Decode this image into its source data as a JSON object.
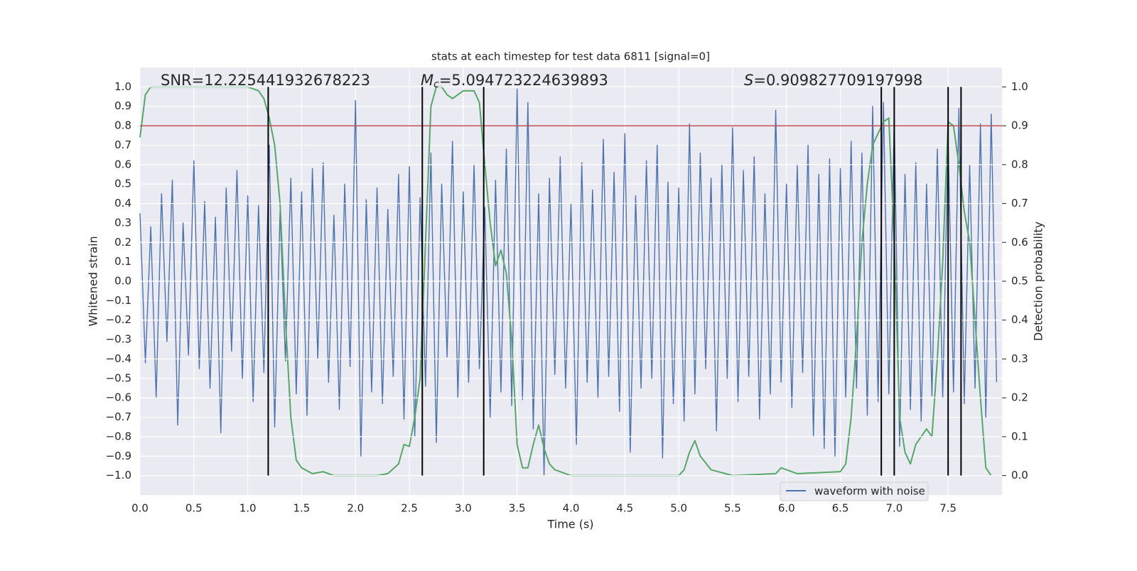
{
  "chart_data": {
    "type": "line",
    "title": "stats at each timestep for test data 6811 [signal=0]",
    "xlabel": "Time (s)",
    "ylabel": "Whitened strain",
    "y2label": "Detection probability",
    "background": "#eaeaf2",
    "grid": true,
    "legend": "lower right",
    "xlim": [
      0,
      8.0
    ],
    "ylim": [
      -1.1,
      1.1
    ],
    "y2lim": [
      -0.05,
      1.05
    ],
    "xticks": [
      {
        "value": 0,
        "label": "0.0"
      },
      {
        "value": 0.5,
        "label": "0.5"
      },
      {
        "value": 1,
        "label": "1.0"
      },
      {
        "value": 1.5,
        "label": "1.5"
      },
      {
        "value": 2,
        "label": "2.0"
      },
      {
        "value": 2.5,
        "label": "2.5"
      },
      {
        "value": 3,
        "label": "3.0"
      },
      {
        "value": 3.5,
        "label": "3.5"
      },
      {
        "value": 4,
        "label": "4.0"
      },
      {
        "value": 4.5,
        "label": "4.5"
      },
      {
        "value": 5,
        "label": "5.0"
      },
      {
        "value": 5.5,
        "label": "5.5"
      },
      {
        "value": 6,
        "label": "6.0"
      },
      {
        "value": 6.5,
        "label": "6.5"
      },
      {
        "value": 7,
        "label": "7.0"
      },
      {
        "value": 7.5,
        "label": "7.5"
      }
    ],
    "yticks": [
      {
        "value": -1,
        "label": "−1.0"
      },
      {
        "value": -0.9,
        "label": "−0.9"
      },
      {
        "value": -0.8,
        "label": "−0.8"
      },
      {
        "value": -0.7,
        "label": "−0.7"
      },
      {
        "value": -0.6,
        "label": "−0.6"
      },
      {
        "value": -0.5,
        "label": "−0.5"
      },
      {
        "value": -0.4,
        "label": "−0.4"
      },
      {
        "value": -0.3,
        "label": "−0.3"
      },
      {
        "value": -0.2,
        "label": "−0.2"
      },
      {
        "value": -0.1,
        "label": "−0.1"
      },
      {
        "value": 0,
        "label": "0.0"
      },
      {
        "value": 0.1,
        "label": "0.1"
      },
      {
        "value": 0.2,
        "label": "0.2"
      },
      {
        "value": 0.3,
        "label": "0.3"
      },
      {
        "value": 0.4,
        "label": "0.4"
      },
      {
        "value": 0.5,
        "label": "0.5"
      },
      {
        "value": 0.6,
        "label": "0.6"
      },
      {
        "value": 0.7,
        "label": "0.7"
      },
      {
        "value": 0.8,
        "label": "0.8"
      },
      {
        "value": 0.9,
        "label": "0.9"
      },
      {
        "value": 1,
        "label": "1.0"
      }
    ],
    "y2ticks": [
      {
        "value": 0,
        "label": "0.0"
      },
      {
        "value": 0.1,
        "label": "0.1"
      },
      {
        "value": 0.2,
        "label": "0.2"
      },
      {
        "value": 0.3,
        "label": "0.3"
      },
      {
        "value": 0.4,
        "label": "0.4"
      },
      {
        "value": 0.5,
        "label": "0.5"
      },
      {
        "value": 0.6,
        "label": "0.6"
      },
      {
        "value": 0.7,
        "label": "0.7"
      },
      {
        "value": 0.8,
        "label": "0.8"
      },
      {
        "value": 0.9,
        "label": "0.9"
      },
      {
        "value": 1,
        "label": "1.0"
      }
    ],
    "series": [
      {
        "name": "waveform with noise",
        "color": "#4c72b0",
        "axis": "y",
        "x": [
          0,
          0.05,
          0.1,
          0.15,
          0.2,
          0.25,
          0.3,
          0.35,
          0.4,
          0.45,
          0.5,
          0.55,
          0.6,
          0.65,
          0.7,
          0.75,
          0.8,
          0.85,
          0.9,
          0.95,
          1,
          1.05,
          1.1,
          1.15,
          1.2,
          1.25,
          1.3,
          1.35,
          1.4,
          1.45,
          1.5,
          1.55,
          1.6,
          1.65,
          1.7,
          1.75,
          1.8,
          1.85,
          1.9,
          1.95,
          2,
          2.05,
          2.1,
          2.15,
          2.2,
          2.25,
          2.3,
          2.35,
          2.4,
          2.45,
          2.5,
          2.55,
          2.6,
          2.65,
          2.7,
          2.75,
          2.8,
          2.85,
          2.9,
          2.95,
          3,
          3.05,
          3.1,
          3.15,
          3.2,
          3.25,
          3.3,
          3.35,
          3.4,
          3.45,
          3.5,
          3.55,
          3.6,
          3.65,
          3.7,
          3.75,
          3.8,
          3.85,
          3.9,
          3.95,
          4,
          4.05,
          4.1,
          4.15,
          4.2,
          4.25,
          4.3,
          4.35,
          4.4,
          4.45,
          4.5,
          4.55,
          4.6,
          4.65,
          4.7,
          4.75,
          4.8,
          4.85,
          4.9,
          4.95,
          5,
          5.05,
          5.1,
          5.15,
          5.2,
          5.25,
          5.3,
          5.35,
          5.4,
          5.45,
          5.5,
          5.55,
          5.6,
          5.65,
          5.7,
          5.75,
          5.8,
          5.85,
          5.9,
          5.95,
          6,
          6.05,
          6.1,
          6.15,
          6.2,
          6.25,
          6.3,
          6.35,
          6.4,
          6.45,
          6.5,
          6.55,
          6.6,
          6.65,
          6.7,
          6.75,
          6.8,
          6.85,
          6.9,
          6.95,
          7,
          7.05,
          7.1,
          7.15,
          7.2,
          7.25,
          7.3,
          7.35,
          7.4,
          7.45,
          7.5,
          7.55,
          7.6,
          7.65,
          7.7,
          7.75,
          7.8,
          7.85,
          7.9,
          7.95
        ],
        "values": [
          0.35,
          -0.42,
          0.28,
          -0.6,
          0.45,
          -0.31,
          0.52,
          -0.74,
          0.3,
          -0.38,
          0.62,
          -0.45,
          0.41,
          -0.55,
          0.33,
          -0.78,
          0.48,
          -0.36,
          0.57,
          -0.5,
          0.44,
          -0.62,
          0.39,
          -0.47,
          0.7,
          -0.75,
          0.36,
          -0.41,
          0.53,
          -0.58,
          0.46,
          -0.69,
          0.58,
          -0.4,
          0.61,
          -0.52,
          0.34,
          -0.66,
          0.5,
          -0.44,
          0.93,
          -0.9,
          0.42,
          -0.57,
          0.48,
          -0.63,
          0.37,
          -0.49,
          0.55,
          -0.71,
          0.59,
          -0.8,
          0.43,
          -0.54,
          0.66,
          -0.83,
          0.5,
          -0.39,
          0.72,
          -0.6,
          0.46,
          -0.52,
          0.6,
          -0.45,
          0.38,
          -0.7,
          0.52,
          -0.57,
          0.68,
          -0.64,
          0.99,
          -0.61,
          0.92,
          -0.76,
          0.45,
          -1.0,
          0.53,
          -0.48,
          0.64,
          -0.55,
          0.4,
          -0.84,
          0.61,
          -0.52,
          0.47,
          -0.6,
          0.73,
          -0.49,
          0.56,
          -0.67,
          0.76,
          -0.88,
          0.44,
          -0.55,
          0.62,
          -0.5,
          0.7,
          -0.91,
          0.51,
          -0.63,
          0.48,
          -0.72,
          0.81,
          -0.58,
          0.66,
          -0.45,
          0.53,
          -0.77,
          0.6,
          -0.5,
          0.79,
          -0.62,
          0.57,
          -0.49,
          0.64,
          -0.71,
          0.45,
          -0.58,
          0.88,
          -0.52,
          0.5,
          -0.65,
          0.6,
          -0.47,
          0.7,
          -0.8,
          0.55,
          -0.86,
          0.63,
          -0.9,
          0.58,
          -0.6,
          0.72,
          -0.55,
          0.66,
          -0.69,
          0.9,
          -0.62,
          0.92,
          -0.58,
          0.84,
          -0.85,
          0.55,
          -0.66,
          0.61,
          -0.72,
          0.5,
          -0.59,
          0.68,
          -0.6,
          0.74,
          -0.57,
          0.89,
          -0.63,
          0.6,
          -0.55,
          0.81,
          -0.7,
          0.86,
          -0.52
        ]
      },
      {
        "color": "#55a868",
        "axis": "y2",
        "x": [
          0,
          0.05,
          0.1,
          0.2,
          0.4,
          0.6,
          0.8,
          1.0,
          1.1,
          1.15,
          1.2,
          1.25,
          1.3,
          1.35,
          1.4,
          1.45,
          1.5,
          1.6,
          1.7,
          1.8,
          2.0,
          2.2,
          2.3,
          2.4,
          2.45,
          2.5,
          2.55,
          2.6,
          2.65,
          2.7,
          2.75,
          2.8,
          2.85,
          2.9,
          2.95,
          3.0,
          3.1,
          3.15,
          3.2,
          3.25,
          3.3,
          3.35,
          3.4,
          3.45,
          3.5,
          3.55,
          3.6,
          3.65,
          3.7,
          3.75,
          3.8,
          3.85,
          3.9,
          4.0,
          4.5,
          5.0,
          5.05,
          5.1,
          5.15,
          5.2,
          5.3,
          5.5,
          5.9,
          5.95,
          6.0,
          6.1,
          6.5,
          6.55,
          6.6,
          6.65,
          6.7,
          6.75,
          6.8,
          6.9,
          6.95,
          7.0,
          7.05,
          7.1,
          7.15,
          7.2,
          7.3,
          7.35,
          7.4,
          7.45,
          7.5,
          7.55,
          7.6,
          7.65,
          7.7,
          7.8,
          7.85,
          7.9
        ],
        "values": [
          0.87,
          0.98,
          1.0,
          1.0,
          1.0,
          1.0,
          1.0,
          1.0,
          0.99,
          0.97,
          0.92,
          0.85,
          0.7,
          0.4,
          0.15,
          0.04,
          0.02,
          0.005,
          0.01,
          0.0,
          0.0,
          0.0,
          0.005,
          0.03,
          0.08,
          0.075,
          0.15,
          0.25,
          0.6,
          0.95,
          1.0,
          1.0,
          0.98,
          0.97,
          0.98,
          0.99,
          0.99,
          0.96,
          0.8,
          0.65,
          0.54,
          0.58,
          0.52,
          0.35,
          0.08,
          0.02,
          0.02,
          0.08,
          0.13,
          0.07,
          0.03,
          0.015,
          0.01,
          0.0,
          0.0,
          0.0,
          0.015,
          0.06,
          0.09,
          0.05,
          0.015,
          0.0,
          0.005,
          0.02,
          0.015,
          0.005,
          0.01,
          0.03,
          0.15,
          0.35,
          0.6,
          0.75,
          0.85,
          0.91,
          0.92,
          0.6,
          0.15,
          0.06,
          0.03,
          0.08,
          0.12,
          0.1,
          0.3,
          0.55,
          0.91,
          0.9,
          0.8,
          0.68,
          0.6,
          0.2,
          0.02,
          0.0
        ]
      }
    ],
    "hlines": [
      {
        "y": 0.8,
        "color": "#c44e52",
        "axis": "y"
      }
    ],
    "vlines": {
      "x": [
        1.19,
        2.62,
        3.19,
        6.88,
        7.0,
        7.5,
        7.62
      ],
      "span": [
        0,
        1
      ],
      "axis": "y2",
      "color": "#000000"
    },
    "annotations": [
      {
        "text": "SNR=12.225441932678223"
      },
      {
        "symbol": "M",
        "subscript": "c",
        "text": "=5.094723224639893"
      },
      {
        "symbol": "S",
        "text": "=0.909827709197998"
      }
    ]
  }
}
